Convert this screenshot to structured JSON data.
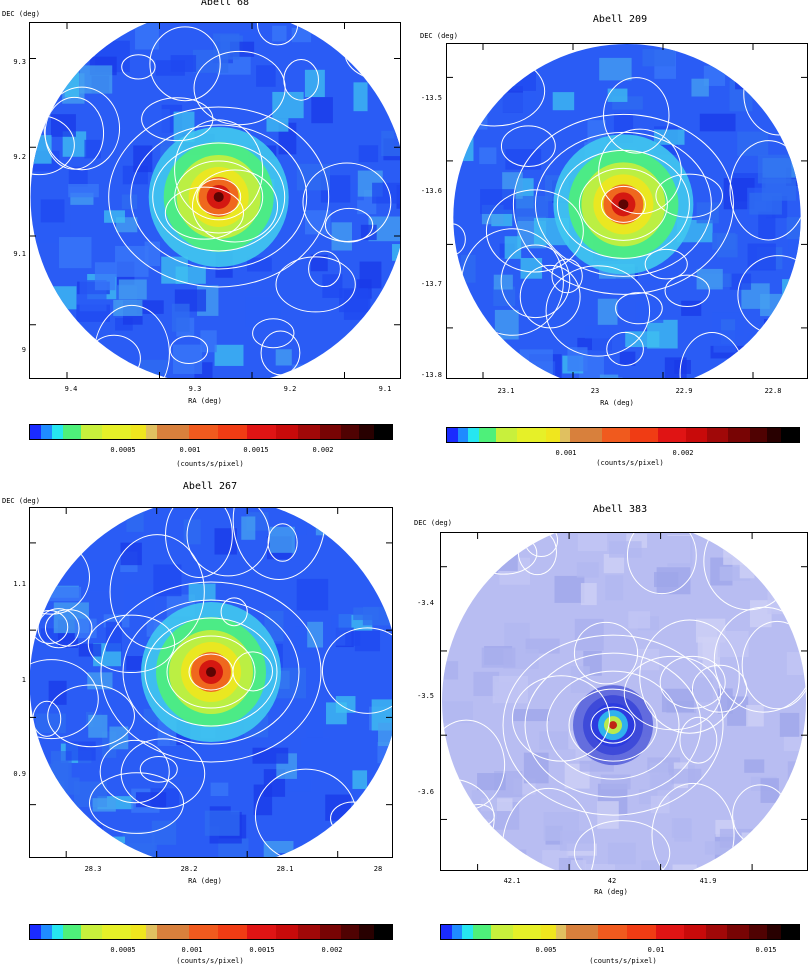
{
  "panels": [
    {
      "title": "Abell 68",
      "ylabel": "DEC (deg)",
      "xlabel": "RA (deg)",
      "yticks": [
        "9.3",
        "9.2",
        "9.1",
        "9"
      ],
      "xticks": [
        "9.4",
        "9.3",
        "9.2",
        "9.1"
      ],
      "colorbar_ticks": [
        "0.0005",
        "0.001",
        "0.0015",
        "0.002"
      ],
      "colorbar_label": "(counts/s/pixel)",
      "background": "#2a5cf5",
      "core": "#d01010"
    },
    {
      "title": "Abell 209",
      "ylabel": "DEC (deg)",
      "xlabel": "RA (deg)",
      "yticks": [
        "-13.5",
        "-13.6",
        "-13.7",
        "-13.8"
      ],
      "xticks": [
        "23.1",
        "23",
        "22.9",
        "22.8"
      ],
      "colorbar_ticks": [
        "0.001",
        "0.002"
      ],
      "colorbar_label": "(counts/s/pixel)",
      "background": "#2a5cf5",
      "core": "#d01010"
    },
    {
      "title": "Abell 267",
      "ylabel": "DEC (deg)",
      "xlabel": "RA (deg)",
      "yticks": [
        "1.1",
        "1",
        "0.9"
      ],
      "xticks": [
        "28.3",
        "28.2",
        "28.1",
        "28"
      ],
      "colorbar_ticks": [
        "0.0005",
        "0.001",
        "0.0015",
        "0.002"
      ],
      "colorbar_label": "(counts/s/pixel)",
      "background": "#2a5cf5",
      "core": "#d01010"
    },
    {
      "title": "Abell 383",
      "ylabel": "DEC (deg)",
      "xlabel": "RA (deg)",
      "yticks": [
        "-3.4",
        "-3.5",
        "-3.6"
      ],
      "xticks": [
        "42.1",
        "42",
        "41.9"
      ],
      "colorbar_ticks": [
        "0.005",
        "0.01",
        "0.015"
      ],
      "colorbar_label": "(counts/s/pixel)",
      "background": "#b8bdf2",
      "core": "#1030e0"
    }
  ],
  "colormap": [
    "#1a2bff",
    "#1f8bff",
    "#26e6f0",
    "#4ef07a",
    "#c8f03c",
    "#e6f028",
    "#f0e61e",
    "#e0c060",
    "#d8803c",
    "#f05a1e",
    "#f03c14",
    "#e01414",
    "#c80a0a",
    "#a00808",
    "#780404",
    "#500202",
    "#280000",
    "#000000"
  ]
}
